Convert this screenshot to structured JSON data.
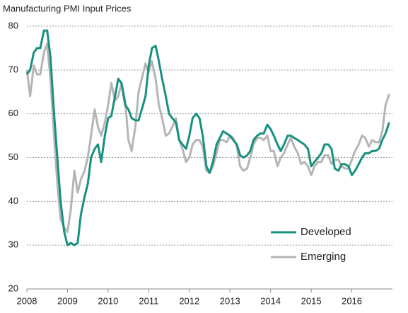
{
  "chart_data": {
    "type": "line",
    "title": "Manufacturing  PMI Input Prices",
    "x": [
      2008.0,
      2008.08,
      2008.17,
      2008.25,
      2008.33,
      2008.42,
      2008.5,
      2008.58,
      2008.67,
      2008.75,
      2008.83,
      2008.92,
      2009.0,
      2009.08,
      2009.17,
      2009.25,
      2009.33,
      2009.42,
      2009.5,
      2009.58,
      2009.67,
      2009.75,
      2009.83,
      2009.92,
      2010.0,
      2010.08,
      2010.17,
      2010.25,
      2010.33,
      2010.42,
      2010.5,
      2010.58,
      2010.67,
      2010.75,
      2010.83,
      2010.92,
      2011.0,
      2011.08,
      2011.17,
      2011.25,
      2011.33,
      2011.42,
      2011.5,
      2011.58,
      2011.67,
      2011.75,
      2011.83,
      2011.92,
      2012.0,
      2012.08,
      2012.17,
      2012.25,
      2012.33,
      2012.42,
      2012.5,
      2012.58,
      2012.67,
      2012.75,
      2012.83,
      2012.92,
      2013.0,
      2013.08,
      2013.17,
      2013.25,
      2013.33,
      2013.42,
      2013.5,
      2013.58,
      2013.67,
      2013.75,
      2013.83,
      2013.92,
      2014.0,
      2014.08,
      2014.17,
      2014.25,
      2014.33,
      2014.42,
      2014.5,
      2014.58,
      2014.67,
      2014.75,
      2014.83,
      2014.92,
      2015.0,
      2015.08,
      2015.17,
      2015.25,
      2015.33,
      2015.42,
      2015.5,
      2015.58,
      2015.67,
      2015.75,
      2015.83,
      2015.92,
      2016.0,
      2016.08,
      2016.17,
      2016.25,
      2016.33,
      2016.42,
      2016.5,
      2016.58,
      2016.67,
      2016.75,
      2016.83,
      2016.92
    ],
    "series": [
      {
        "name": "Developed",
        "color": "#17917f",
        "values": [
          69,
          70,
          74,
          75,
          75,
          79,
          79,
          73,
          60,
          50,
          40,
          33,
          30,
          30.5,
          30,
          30.5,
          37,
          41,
          44,
          50,
          52,
          53,
          49,
          55,
          59,
          59.5,
          64,
          68,
          67,
          62,
          61,
          59,
          58.5,
          58.5,
          61,
          64,
          71,
          75,
          75.5,
          72,
          68,
          64,
          60,
          59,
          58,
          54,
          53,
          52,
          55,
          59,
          60,
          59,
          55,
          48,
          46.5,
          49,
          53,
          54.5,
          56,
          55.5,
          55,
          54,
          53,
          50.5,
          50,
          50.5,
          51.5,
          54,
          55,
          55.5,
          55.5,
          57.5,
          56.5,
          55,
          53,
          51.5,
          53,
          55,
          55,
          54.5,
          54,
          53.5,
          53,
          52,
          48,
          49,
          50,
          51,
          53,
          53,
          52,
          47.5,
          47,
          48.5,
          48.5,
          48,
          46,
          47,
          48.5,
          50,
          51,
          51,
          51.5,
          51.5,
          52,
          54,
          55.5,
          58
        ]
      },
      {
        "name": "Emerging",
        "color": "#b5b5b5",
        "values": [
          70,
          64,
          71,
          69,
          69,
          74,
          76,
          68,
          55,
          44,
          36,
          34,
          33,
          38,
          47,
          42,
          45,
          47,
          50,
          55,
          61,
          57,
          55,
          58,
          62,
          67,
          63,
          64,
          67,
          63,
          54,
          51.5,
          57,
          65,
          68,
          71.5,
          69.5,
          72,
          68,
          62,
          59,
          55,
          55.5,
          57,
          59,
          54,
          52,
          49,
          50,
          53,
          54,
          54,
          52.5,
          47,
          46.5,
          48,
          51,
          54,
          54,
          53.5,
          55,
          54.5,
          52.5,
          48,
          47,
          47.5,
          50,
          53,
          54.5,
          54.5,
          54,
          55,
          51.5,
          51.5,
          48,
          50,
          51,
          53,
          54.5,
          52.5,
          51,
          48.5,
          49,
          48,
          46,
          48,
          49,
          49,
          50.5,
          50.5,
          48.5,
          49.5,
          49.5,
          48,
          47.5,
          47.5,
          49.5,
          51.5,
          53,
          55,
          54.5,
          52.5,
          54,
          53.5,
          53.5,
          56,
          62,
          64.5
        ]
      }
    ],
    "xlim": [
      2008,
      2017
    ],
    "ylim": [
      20,
      80
    ],
    "xticks": [
      2008,
      2009,
      2010,
      2011,
      2012,
      2013,
      2014,
      2015,
      2016
    ],
    "yticks": [
      20,
      30,
      40,
      50,
      60,
      70,
      80
    ],
    "grid": true,
    "legend": "lower right"
  }
}
